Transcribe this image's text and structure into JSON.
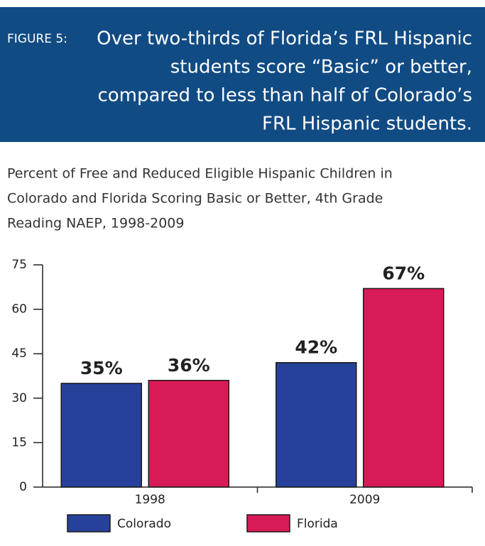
{
  "chart_data": {
    "type": "bar",
    "label": "FIGURE 5:",
    "title": [
      "Over two-thirds of Florida’s FRL Hispanic",
      "students score “Basic” or better,",
      "compared to less than half of Colorado’s",
      "FRL Hispanic students."
    ],
    "subtitle": [
      "Percent of Free and Reduced Eligible Hispanic Children in",
      "Colorado and Florida Scoring Basic or Better, 4th Grade",
      "Reading NAEP, 1998-2009"
    ],
    "categories": [
      "1998",
      "2009"
    ],
    "series": [
      {
        "name": "Colorado",
        "color": "#27419a",
        "values": [
          35,
          42
        ],
        "value_labels": [
          "35%",
          "42%"
        ]
      },
      {
        "name": "Florida",
        "color": "#d81b57",
        "values": [
          36,
          67
        ],
        "value_labels": [
          "36%",
          "67%"
        ]
      }
    ],
    "ylim": [
      0,
      75
    ],
    "yticks": [
      0,
      15,
      30,
      45,
      60,
      75
    ]
  }
}
